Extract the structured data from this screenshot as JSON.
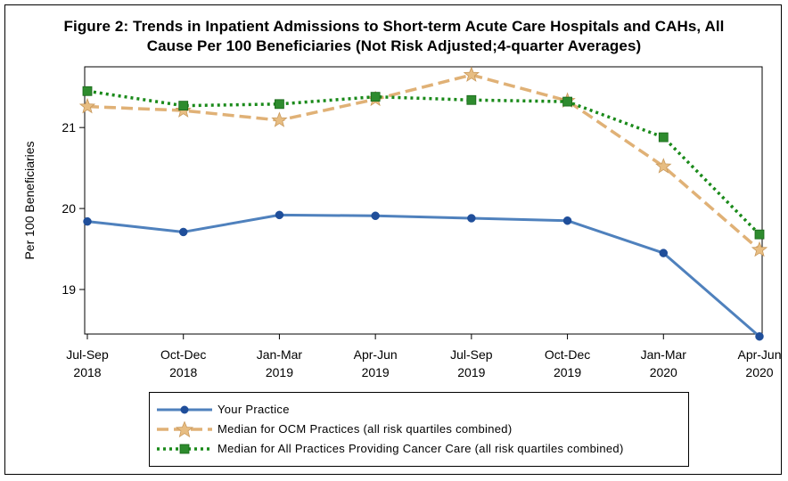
{
  "chart_data": {
    "type": "line",
    "title_line1": "Figure 2: Trends in Inpatient Admissions to Short-term Acute Care Hospitals and CAHs, All",
    "title_line2": "Cause Per 100 Beneficiaries (Not Risk Adjusted;4-quarter Averages)",
    "ylabel": "Per 100 Beneficiaries",
    "xlabel": "",
    "ylim": [
      18.45,
      21.75
    ],
    "yticks": [
      19,
      20,
      21
    ],
    "ytick_labels": [
      "19",
      "20",
      "21"
    ],
    "categories": [
      [
        "Jul-Sep",
        "2018"
      ],
      [
        "Oct-Dec",
        "2018"
      ],
      [
        "Jan-Mar",
        "2019"
      ],
      [
        "Apr-Jun",
        "2019"
      ],
      [
        "Jul-Sep",
        "2019"
      ],
      [
        "Oct-Dec",
        "2019"
      ],
      [
        "Jan-Mar",
        "2020"
      ],
      [
        "Apr-Jun",
        "2020"
      ]
    ],
    "series": [
      {
        "name": "Your Practice",
        "color": "#4f81bd",
        "style": "solid",
        "marker": "circle",
        "values": [
          19.84,
          19.71,
          19.92,
          19.91,
          19.88,
          19.85,
          19.45,
          18.42
        ]
      },
      {
        "name": "Median for OCM Practices (all risk quartiles combined)",
        "color": "#e0b176",
        "style": "dashed",
        "marker": "star",
        "values": [
          21.26,
          21.21,
          21.09,
          21.35,
          21.65,
          21.33,
          20.52,
          19.49
        ]
      },
      {
        "name": "Median for All Practices Providing Cancer Care (all risk quartiles combined)",
        "color": "#1a8a1a",
        "style": "dotted",
        "marker": "square",
        "values": [
          21.45,
          21.27,
          21.29,
          21.38,
          21.34,
          21.32,
          20.88,
          19.68
        ]
      }
    ],
    "legend_position": "bottom"
  }
}
